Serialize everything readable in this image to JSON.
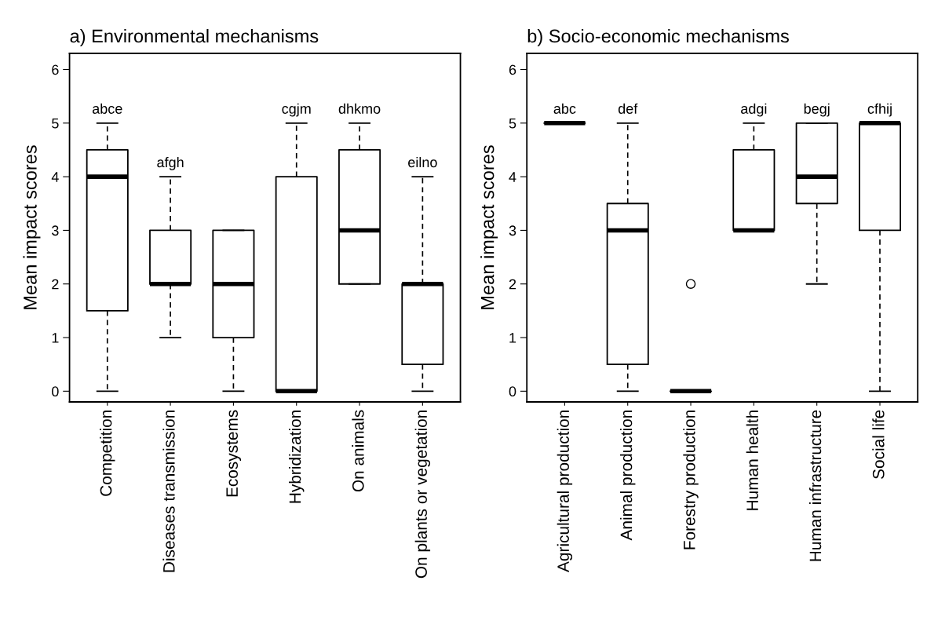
{
  "chart_data": [
    {
      "type": "box",
      "title": "a) Environmental mechanisms",
      "ylabel": "Mean impact scores",
      "categories": [
        "Competition",
        "Diseases transmission",
        "Ecosystems",
        "Hybridization",
        "On animals",
        "On plants or vegetation"
      ],
      "boxes": [
        {
          "low": 0,
          "q1": 1.5,
          "median": 4,
          "q3": 4.5,
          "high": 5
        },
        {
          "low": 1,
          "q1": 2,
          "median": 2,
          "q3": 3,
          "high": 4
        },
        {
          "low": 0,
          "q1": 1,
          "median": 2,
          "q3": 3,
          "high": 3
        },
        {
          "low": 0,
          "q1": 0,
          "median": 0,
          "q3": 4,
          "high": 5
        },
        {
          "low": 2,
          "q1": 2,
          "median": 3,
          "q3": 4.5,
          "high": 5
        },
        {
          "low": 0,
          "q1": 0.5,
          "median": 2,
          "q3": 2,
          "high": 4
        }
      ],
      "ylim": [
        -0.2,
        6.3
      ],
      "yticks": [
        0,
        1,
        2,
        3,
        4,
        5,
        6
      ],
      "grid": false,
      "color": "#000000",
      "annotations": [
        {
          "text": "abce",
          "x": "Competition",
          "y": 5
        },
        {
          "text": "afgh",
          "x": "Diseases transmission",
          "y": 4
        },
        {
          "text": "cgjm",
          "x": "Hybridization",
          "y": 5
        },
        {
          "text": "dhkmo",
          "x": "On animals",
          "y": 5
        },
        {
          "text": "eilno",
          "x": "On plants or vegetation",
          "y": 4
        }
      ]
    },
    {
      "type": "box",
      "title": "b) Socio-economic mechanisms",
      "ylabel": "Mean impact scores",
      "categories": [
        "Agricultural production",
        "Animal production",
        "Forestry production",
        "Human health",
        "Human infrastructure",
        "Social life"
      ],
      "boxes": [
        {
          "low": 5,
          "q1": 5,
          "median": 5,
          "q3": 5,
          "high": 5
        },
        {
          "low": 0,
          "q1": 0.5,
          "median": 3,
          "q3": 3.5,
          "high": 5
        },
        {
          "low": 0,
          "q1": 0,
          "median": 0,
          "q3": 0,
          "high": 0,
          "outliers": [
            2
          ]
        },
        {
          "low": 3,
          "q1": 3,
          "median": 3,
          "q3": 4.5,
          "high": 5
        },
        {
          "low": 2,
          "q1": 3.5,
          "median": 4,
          "q3": 5,
          "high": 5
        },
        {
          "low": 0,
          "q1": 3,
          "median": 5,
          "q3": 5,
          "high": 5
        }
      ],
      "ylim": [
        -0.2,
        6.3
      ],
      "yticks": [
        0,
        1,
        2,
        3,
        4,
        5,
        6
      ],
      "grid": false,
      "color": "#000000",
      "annotations": [
        {
          "text": "abc",
          "x": "Agricultural production",
          "y": 5
        },
        {
          "text": "def",
          "x": "Animal production",
          "y": 5
        },
        {
          "text": "adgi",
          "x": "Human health",
          "y": 5
        },
        {
          "text": "begj",
          "x": "Human infrastructure",
          "y": 5
        },
        {
          "text": "cfhij",
          "x": "Social life",
          "y": 5
        }
      ]
    }
  ]
}
